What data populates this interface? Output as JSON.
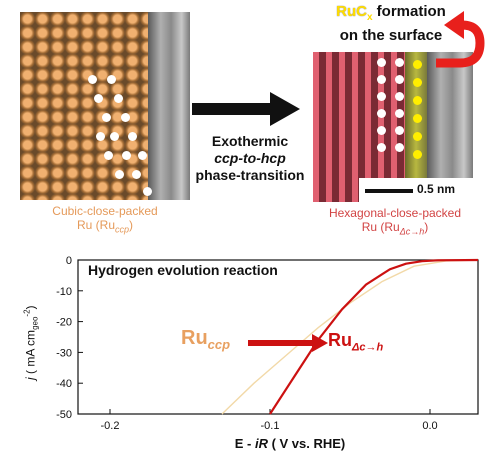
{
  "top": {
    "ruc_prefix": "RuC",
    "ruc_sub": "x",
    "ruc_suffix": " formation",
    "ruc_line2": "on the surface",
    "transition_line1": "Exothermic",
    "transition_line2": "ccp-to-hcp",
    "transition_line3": "phase-transition",
    "scale_bar": "0.5 nm",
    "left_caption_line1": "Cubic-close-packed",
    "left_caption_line2_main": "Ru (Ru",
    "left_caption_line2_sub": "ccp",
    "left_caption_line2_end": ")",
    "right_caption_line1": "Hexagonal-close-packed",
    "right_caption_line2_main": "Ru (Ru",
    "right_caption_line2_sub": "Δc→h",
    "right_caption_line2_end": ")"
  },
  "plot": {
    "inset_title": "Hydrogen evolution reaction",
    "label_ccp_main": "Ru",
    "label_ccp_sub": "ccp",
    "label_hcp_main": "Ru",
    "label_hcp_sub": "Δc→h",
    "ylabel_j": "j",
    "ylabel_rest": " ( mA cm",
    "ylabel_sub": "geo",
    "ylabel_sup": "-2",
    "ylabel_end": ")",
    "xlabel_main": "E - ",
    "xlabel_ir": "iR",
    "xlabel_end": " ( V vs. RHE)"
  },
  "colors": {
    "ccp": "#e8a060",
    "hcp": "#cc1111",
    "ruc": "#ffdd00",
    "ccp_curve": "#f2d9a8"
  },
  "chart_data": {
    "type": "line",
    "xlim": [
      -0.22,
      0.03
    ],
    "ylim": [
      -50,
      0
    ],
    "xticks": [
      "-0.2",
      "-0.1",
      "0.0"
    ],
    "yticks": [
      "0",
      "-10",
      "-20",
      "-30",
      "-40",
      "-50"
    ],
    "series": [
      {
        "name": "Ru_ccp",
        "x": [
          -0.13,
          -0.11,
          -0.09,
          -0.07,
          -0.05,
          -0.03,
          -0.01,
          0.01,
          0.03
        ],
        "y": [
          -50,
          -40,
          -31,
          -22,
          -14,
          -7,
          -2,
          -0.3,
          0
        ]
      },
      {
        "name": "Ru_Δc→h",
        "x": [
          -0.1,
          -0.085,
          -0.07,
          -0.055,
          -0.04,
          -0.025,
          -0.015,
          -0.005,
          0.005,
          0.03
        ],
        "y": [
          -50,
          -38,
          -26,
          -16,
          -8,
          -3,
          -1.2,
          -0.4,
          -0.1,
          0
        ]
      }
    ]
  }
}
